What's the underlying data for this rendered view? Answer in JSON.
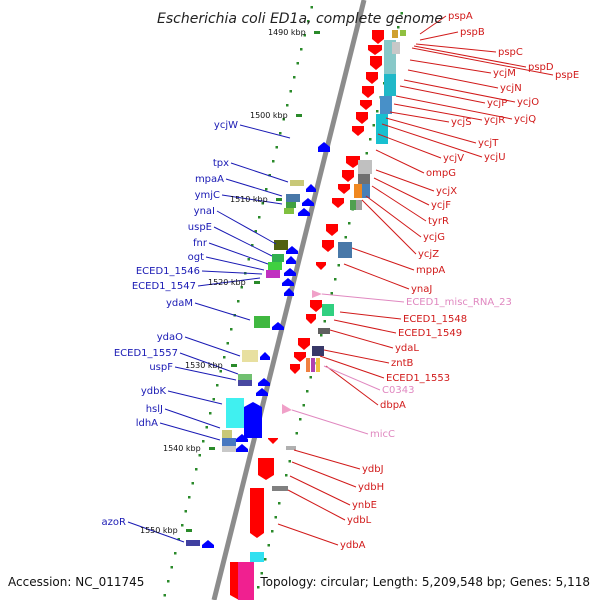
{
  "title": "Escherichia coli ED1a, complete genome",
  "accession": "Accession: NC_011745",
  "topology": "Topology: circular; Length: 5,209,548 bp; Genes: 5,118",
  "colors": {
    "backbone": "#8c8c8c",
    "forward_label": "#d11a1a",
    "reverse_label": "#1a1ab4",
    "rna_label": "#e088c0",
    "tick": "#2a8a2a"
  },
  "kbp_ticks": [
    "1490 kbp",
    "1500 kbp",
    "1510 kbp",
    "1520 kbp",
    "1530 kbp",
    "1540 kbp",
    "1550 kbp"
  ],
  "labels_left": [
    "ycjW",
    "tpx",
    "mpaA",
    "ymjC",
    "ynaI",
    "uspE",
    "fnr",
    "ogt",
    "ECED1_1546",
    "ECED1_1547",
    "ydaM",
    "ydaO",
    "ECED1_1557",
    "uspF",
    "ydbK",
    "hslJ",
    "ldhA",
    "azoR"
  ],
  "labels_right": [
    "pspA",
    "pspB",
    "pspC",
    "pspD",
    "pspE",
    "ycjM",
    "ycjN",
    "ycjO",
    "ycjP",
    "ycjQ",
    "ycjR",
    "ycjS",
    "ycjT",
    "ycjU",
    "ycjV",
    "ompG",
    "ycjX",
    "ycjF",
    "tyrR",
    "ycjG",
    "ycjZ",
    "mppA",
    "ynaJ",
    "ECED1_1548",
    "ECED1_1549",
    "ydaL",
    "zntB",
    "ECED1_1553",
    "dbpA",
    "ydbJ",
    "ydbH",
    "ynbE",
    "ydbL",
    "ydbA"
  ],
  "labels_rna": [
    "ECED1_misc_RNA_23",
    "C0343",
    "micC"
  ]
}
